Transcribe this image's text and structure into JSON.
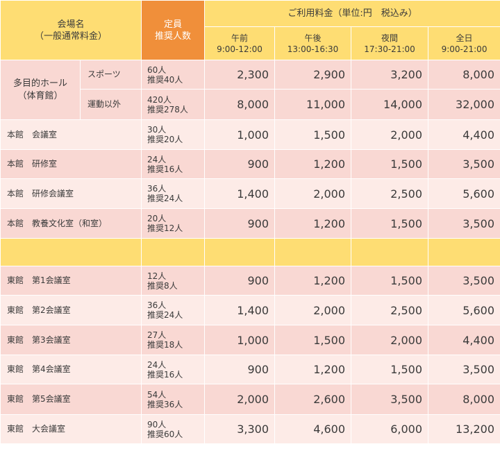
{
  "header": {
    "venue_line1": "会場名",
    "venue_line2": "（一般通常料金）",
    "capacity_line1": "定員",
    "capacity_line2": "推奨人数",
    "fee_title": "ご利用料金（単位:円　税込み）",
    "slots": [
      {
        "name": "午前",
        "time": "9:00-12:00"
      },
      {
        "name": "午後",
        "time": "13:00-16:30"
      },
      {
        "name": "夜間",
        "time": "17:30-21:00"
      },
      {
        "name": "全日",
        "time": "9:00-21:00"
      }
    ]
  },
  "hall": {
    "name_line1": "多目的ホール",
    "name_line2": "（体育館）",
    "rows": [
      {
        "sub": "スポーツ",
        "cap": "60人",
        "rec": "推奨40人",
        "prices": [
          "2,300",
          "2,900",
          "3,200",
          "8,000"
        ]
      },
      {
        "sub": "運動以外",
        "cap": "420人",
        "rec": "推奨278人",
        "prices": [
          "8,000",
          "11,000",
          "14,000",
          "32,000"
        ]
      }
    ]
  },
  "honkan": [
    {
      "name": "本館　会議室",
      "cap": "30人",
      "rec": "推奨20人",
      "prices": [
        "1,000",
        "1,500",
        "2,000",
        "4,400"
      ]
    },
    {
      "name": "本館　研修室",
      "cap": "24人",
      "rec": "推奨16人",
      "prices": [
        "900",
        "1,200",
        "1,500",
        "3,500"
      ]
    },
    {
      "name": "本館　研修会議室",
      "cap": "36人",
      "rec": "推奨24人",
      "prices": [
        "1,400",
        "2,000",
        "2,500",
        "5,600"
      ]
    },
    {
      "name": "本館　教養文化室（和室）",
      "cap": "20人",
      "rec": "推奨12人",
      "prices": [
        "900",
        "1,200",
        "1,500",
        "3,500"
      ]
    }
  ],
  "higashikan": [
    {
      "name": "東館　第1会議室",
      "cap": "12人",
      "rec": "推奨8人",
      "prices": [
        "900",
        "1,200",
        "1,500",
        "3,500"
      ]
    },
    {
      "name": "東館　第2会議室",
      "cap": "36人",
      "rec": "推奨24人",
      "prices": [
        "1,400",
        "2,000",
        "2,500",
        "5,600"
      ]
    },
    {
      "name": "東館　第3会議室",
      "cap": "27人",
      "rec": "推奨18人",
      "prices": [
        "1,000",
        "1,500",
        "2,000",
        "4,400"
      ]
    },
    {
      "name": "東館　第4会議室",
      "cap": "24人",
      "rec": "推奨16人",
      "prices": [
        "900",
        "1,200",
        "1,500",
        "3,500"
      ]
    },
    {
      "name": "東館　第5会議室",
      "cap": "54人",
      "rec": "推奨36人",
      "prices": [
        "2,000",
        "2,600",
        "3,500",
        "8,000"
      ]
    },
    {
      "name": "東館　大会議室",
      "cap": "90人",
      "rec": "推奨60人",
      "prices": [
        "3,300",
        "4,600",
        "6,000",
        "13,200"
      ]
    }
  ],
  "colors": {
    "header_yellow": "#fedd73",
    "header_orange": "#f08f3a",
    "row_dark": "#f9d8d3",
    "row_light": "#fdebe7"
  }
}
